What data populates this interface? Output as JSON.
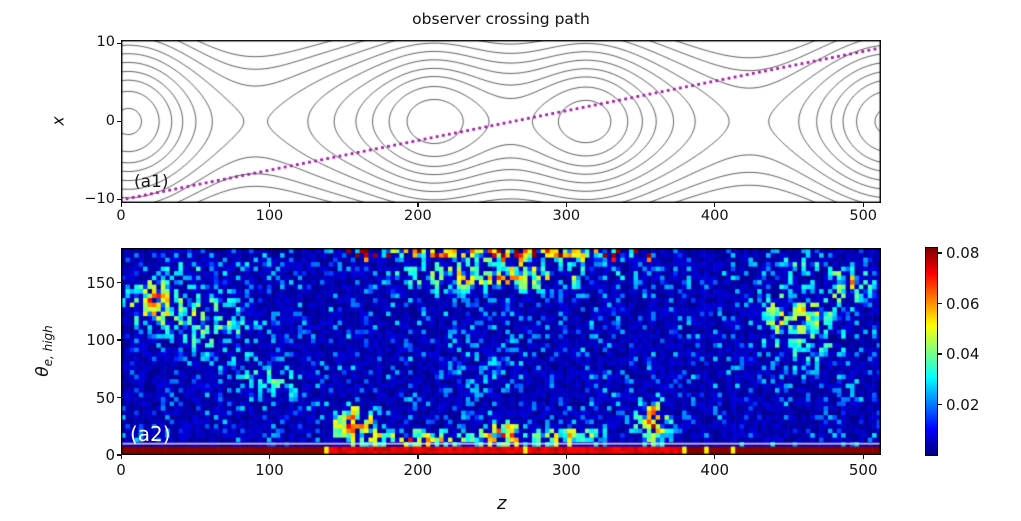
{
  "figure": {
    "bg": "#ffffff"
  },
  "chart_data": [
    {
      "panel": "a1",
      "type": "contour",
      "title": "observer crossing path",
      "ylabel": "x",
      "annotation": "(a1)",
      "xlim": [
        0,
        512
      ],
      "ylim": [
        -10.4,
        10.4
      ],
      "xticks": [
        {
          "v": 0,
          "l": "0"
        },
        {
          "v": 100,
          "l": "100"
        },
        {
          "v": 200,
          "l": "200"
        },
        {
          "v": 300,
          "l": "300"
        },
        {
          "v": 400,
          "l": "400"
        },
        {
          "v": 500,
          "l": "500"
        }
      ],
      "yticks": [
        {
          "v": 10,
          "l": "10"
        },
        {
          "v": 0,
          "l": "0"
        },
        {
          "v": -10,
          "l": "−10"
        }
      ],
      "line_color": "rgba(40,40,40,0.85)",
      "x_points_z": [
        85,
        425
      ],
      "o_points_z": [
        8,
        210,
        315,
        512
      ],
      "field_bumps": [
        {
          "z": 85,
          "a": 0.55,
          "w": 55
        },
        {
          "z": 425,
          "a": 0.55,
          "w": 55
        },
        {
          "z": 210,
          "a": -0.5,
          "w": 45
        },
        {
          "z": 315,
          "a": -0.5,
          "w": 45
        },
        {
          "z": 8,
          "a": -0.55,
          "w": 48
        }
      ],
      "levels": [
        -0.42,
        -0.3,
        -0.17,
        -0.04,
        0.12,
        0.3,
        0.5,
        0.72,
        0.96,
        1.2
      ],
      "observer_path": {
        "z": [
          0,
          512
        ],
        "x": [
          -10,
          9.4
        ],
        "color": "#a61ca6",
        "style": "dotted"
      }
    },
    {
      "panel": "a2",
      "type": "heatmap",
      "xlabel": "z",
      "ylabel_theta": "θ",
      "ylabel_sub": "e, high",
      "annotation": "(a2)",
      "xlim": [
        0,
        512
      ],
      "ylim": [
        0,
        180
      ],
      "xticks": [
        {
          "v": 0,
          "l": "0"
        },
        {
          "v": 100,
          "l": "100"
        },
        {
          "v": 200,
          "l": "200"
        },
        {
          "v": 300,
          "l": "300"
        },
        {
          "v": 400,
          "l": "400"
        },
        {
          "v": 500,
          "l": "500"
        }
      ],
      "yticks": [
        {
          "v": 0,
          "l": "0"
        },
        {
          "v": 50,
          "l": "50"
        },
        {
          "v": 100,
          "l": "100"
        },
        {
          "v": 150,
          "l": "150"
        }
      ],
      "colormap": "jet",
      "vmin": 0,
      "vmax": 0.082,
      "grid": {
        "cols": 172,
        "rows": 46
      },
      "seed": 12,
      "background_value_range": [
        0.001,
        0.008
      ],
      "clusters": [
        {
          "z": 20,
          "t": 135,
          "sz": 16,
          "st": 18,
          "a": 0.04
        },
        {
          "z": 52,
          "t": 122,
          "sz": 28,
          "st": 24,
          "a": 0.02
        },
        {
          "z": 100,
          "t": 60,
          "sz": 22,
          "st": 16,
          "a": 0.02
        },
        {
          "z": 75,
          "t": 100,
          "sz": 42,
          "st": 36,
          "a": 0.012
        },
        {
          "z": 255,
          "t": 177,
          "sz": 80,
          "st": 5,
          "a": 0.058
        },
        {
          "z": 255,
          "t": 156,
          "sz": 78,
          "st": 13,
          "a": 0.036
        },
        {
          "z": 157,
          "t": 28,
          "sz": 16,
          "st": 16,
          "a": 0.048
        },
        {
          "z": 195,
          "t": 14,
          "sz": 30,
          "st": 8,
          "a": 0.028
        },
        {
          "z": 240,
          "t": 14,
          "sz": 60,
          "st": 8,
          "a": 0.02
        },
        {
          "z": 258,
          "t": 22,
          "sz": 12,
          "st": 10,
          "a": 0.04
        },
        {
          "z": 305,
          "t": 18,
          "sz": 26,
          "st": 10,
          "a": 0.026
        },
        {
          "z": 357,
          "t": 32,
          "sz": 13,
          "st": 20,
          "a": 0.052
        },
        {
          "z": 250,
          "t": 85,
          "sz": 65,
          "st": 48,
          "a": 0.011
        },
        {
          "z": 465,
          "t": 105,
          "sz": 42,
          "st": 50,
          "a": 0.016
        },
        {
          "z": 492,
          "t": 149,
          "sz": 16,
          "st": 12,
          "a": 0.034
        },
        {
          "z": 452,
          "t": 125,
          "sz": 25,
          "st": 25,
          "a": 0.019
        },
        {
          "z": 60,
          "t": 165,
          "sz": 45,
          "st": 12,
          "a": 0.016
        },
        {
          "z": 450,
          "t": 168,
          "sz": 40,
          "st": 10,
          "a": 0.014
        }
      ],
      "top_red_streaks": {
        "z_range": [
          150,
          360
        ],
        "theta_min": 172,
        "prob": 0.1,
        "value": 0.079
      },
      "bottom_band": {
        "theta_max": 9,
        "value": 0.082,
        "bright_z_range": [
          139,
          378
        ],
        "bright_value": 0.071,
        "gap_z": [
          138,
          273,
          379,
          395,
          412
        ],
        "gap_value": 0.052,
        "pale_line_color": "rgba(255,228,225,0.78)"
      },
      "colorbar": {
        "ticks": [
          {
            "v": 0.02,
            "l": "0.02"
          },
          {
            "v": 0.04,
            "l": "0.04"
          },
          {
            "v": 0.06,
            "l": "0.06"
          },
          {
            "v": 0.08,
            "l": "0.08"
          }
        ]
      }
    }
  ]
}
